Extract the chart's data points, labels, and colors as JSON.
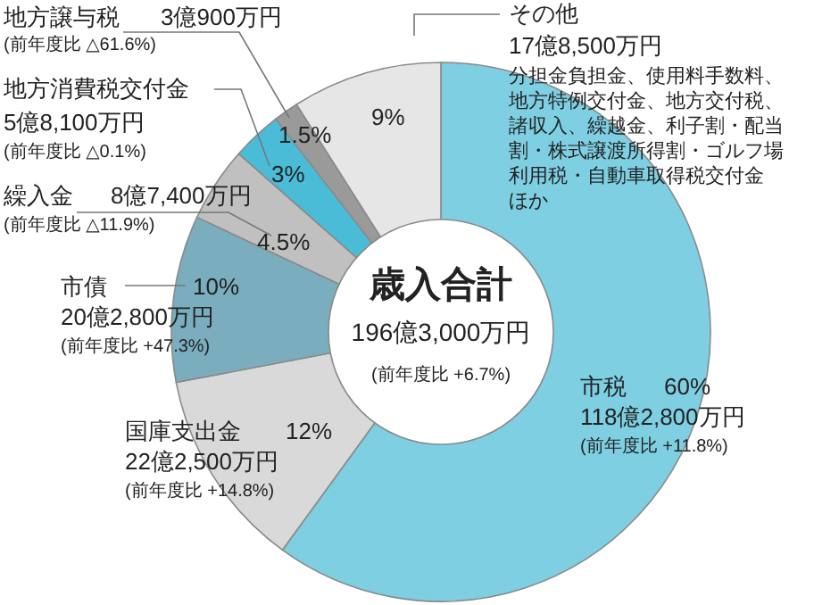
{
  "chart_data": {
    "type": "donut",
    "title": "歳入合計",
    "subtitle": "196億3,000万円",
    "categories": [
      "市税",
      "国庫支出金",
      "市債",
      "繰入金",
      "地方消費税交付金",
      "地方譲与税",
      "その他"
    ],
    "values": [
      60,
      12,
      10,
      4.5,
      3,
      1.5,
      9
    ],
    "colors": [
      "#7ecfe2",
      "#d9d9d9",
      "#7aaebe",
      "#c0c0c0",
      "#4bbcd8",
      "#9a9a9a",
      "#e6e6e6"
    ],
    "value_labels": [
      "60%",
      "12%",
      "10%",
      "4.5%",
      "3%",
      "1.5%",
      "9%"
    ],
    "annotations": [
      "118億2,800万円",
      "(前年度比 +11.8%)",
      "22億2,500万円",
      "(前年度比 +14.8%)",
      "20億2,800万円",
      "(前年度比 +47.3%)",
      "8億7,400万円",
      "(前年度比 △11.9%)",
      "5億8,100万円",
      "(前年度比 △0.1%)",
      "3億900万円",
      "(前年度比 △61.6%)",
      "17億8,500万円",
      "分担金負担金、使用料手数料、地方特例交付金、地方交付税、諸収入、繰越金、利子割・配当割・株式譲渡所得割・ゴルフ場利用税・自動車取得税交付金ほか",
      "(前年度比 +6.7%)"
    ]
  }
}
